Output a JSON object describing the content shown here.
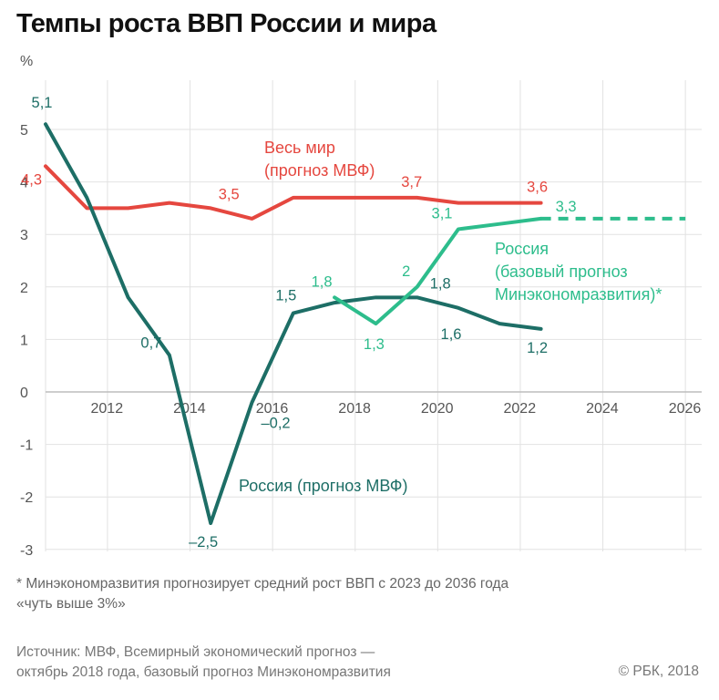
{
  "title": "Темпы роста ВВП России и мира",
  "footnote_lines": [
    "* Минэкономразвития прогнозирует средний рост ВВП с 2023 до 2036 года",
    "«чуть выше 3%»"
  ],
  "source_lines": [
    "Источник: МВФ, Всемирный экономический прогноз —",
    "октябрь 2018 года, базовый прогноз Минэкономразвития"
  ],
  "copyright": "© РБК, 2018",
  "colors": {
    "world": "#e5473f",
    "russia_imf": "#1d6e66",
    "russia_mer": "#2dbd8c",
    "grid": "#e2e2e2",
    "axis": "#bdbdbd"
  },
  "chart_data": {
    "type": "line",
    "title": "Темпы роста ВВП России и мира",
    "ylabel": "%",
    "xlim": [
      2011,
      2027
    ],
    "ylim": [
      -3,
      5
    ],
    "yticks": [
      -3,
      -2,
      -1,
      0,
      1,
      2,
      3,
      4,
      5
    ],
    "ytick_labels": [
      "-3",
      "-2",
      "-1",
      "0",
      "1",
      "2",
      "3",
      "4",
      "5"
    ],
    "xticks": [
      2012,
      2014,
      2016,
      2018,
      2020,
      2022,
      2024,
      2026
    ],
    "grid": true,
    "series": [
      {
        "name_lines": [
          "Весь мир",
          "(прогноз МВФ)"
        ],
        "color": "#e5473f",
        "style": "solid",
        "x": [
          2011,
          2012,
          2013,
          2014,
          2015,
          2016,
          2017,
          2018,
          2019,
          2020,
          2021,
          2022,
          2023
        ],
        "y": [
          4.3,
          3.5,
          3.5,
          3.6,
          3.5,
          3.3,
          3.7,
          3.7,
          3.7,
          3.7,
          3.6,
          3.6,
          3.6
        ]
      },
      {
        "name_lines": [
          "Россия (прогноз МВФ)"
        ],
        "color": "#1d6e66",
        "style": "solid",
        "x": [
          2011,
          2012,
          2013,
          2014,
          2015,
          2016,
          2017,
          2018,
          2019,
          2020,
          2021,
          2022,
          2023
        ],
        "y": [
          5.1,
          3.7,
          1.8,
          0.7,
          -2.5,
          -0.2,
          1.5,
          1.7,
          1.8,
          1.8,
          1.6,
          1.3,
          1.2
        ]
      },
      {
        "name_lines": [
          "Россия",
          "(базовый прогноз",
          "Минэкономразвития)*"
        ],
        "color": "#2dbd8c",
        "style": "solid",
        "x": [
          2018,
          2019,
          2020,
          2021,
          2022,
          2023
        ],
        "y": [
          1.8,
          1.3,
          2.0,
          3.1,
          3.2,
          3.3
        ]
      },
      {
        "name_lines": [],
        "color": "#2dbd8c",
        "style": "dashed",
        "x": [
          2023,
          2026.5
        ],
        "y": [
          3.3,
          3.3
        ]
      }
    ],
    "annotations": [
      {
        "text": "4,3",
        "x": 2011,
        "y": 4.3,
        "series": 0
      },
      {
        "text": "3,5",
        "x": 2015,
        "y": 3.5,
        "series": 0
      },
      {
        "text": "3,7",
        "x": 2020,
        "y": 3.7,
        "series": 0
      },
      {
        "text": "3,6",
        "x": 2023,
        "y": 3.6,
        "series": 0
      },
      {
        "text": "5,1",
        "x": 2011,
        "y": 5.1,
        "series": 1
      },
      {
        "text": "0,7",
        "x": 2014,
        "y": 0.7,
        "series": 1
      },
      {
        "text": "–2,5",
        "x": 2015,
        "y": -2.5,
        "series": 1
      },
      {
        "text": "–0,2",
        "x": 2016,
        "y": -0.2,
        "series": 1
      },
      {
        "text": "1,5",
        "x": 2017,
        "y": 1.5,
        "series": 1
      },
      {
        "text": "1,8",
        "x": 2020,
        "y": 1.8,
        "series": 1
      },
      {
        "text": "1,6",
        "x": 2021,
        "y": 1.6,
        "series": 1
      },
      {
        "text": "1,2",
        "x": 2023,
        "y": 1.2,
        "series": 1
      },
      {
        "text": "1,8",
        "x": 2018,
        "y": 1.8,
        "series": 2
      },
      {
        "text": "1,3",
        "x": 2019,
        "y": 1.3,
        "series": 2
      },
      {
        "text": "2",
        "x": 2020,
        "y": 2.0,
        "series": 2
      },
      {
        "text": "3,1",
        "x": 2021,
        "y": 3.1,
        "series": 2
      },
      {
        "text": "3,3",
        "x": 2023,
        "y": 3.3,
        "series": 2
      }
    ]
  }
}
